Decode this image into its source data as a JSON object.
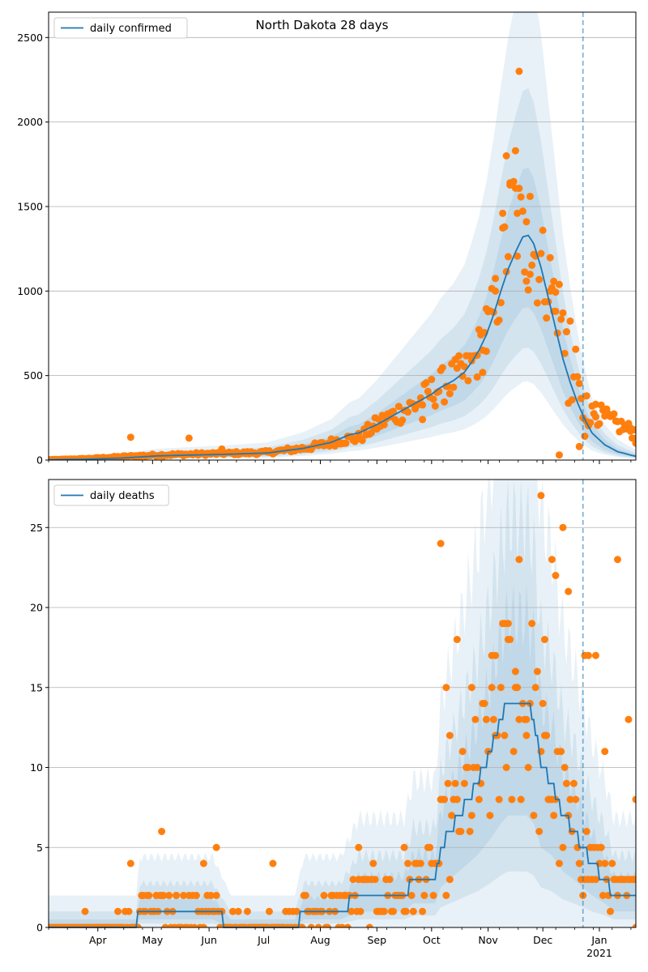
{
  "chart_data": [
    {
      "type": "line",
      "title": "North Dakota 28 days",
      "legend": {
        "label": "daily confirmed",
        "placement": "top-left"
      },
      "ylim": [
        0,
        2650
      ],
      "yticks": [
        0,
        500,
        1000,
        1500,
        2000,
        2500
      ],
      "xlim_day": [
        0,
        322
      ],
      "grid": "horizontal",
      "cutoff_day": 293,
      "colors": {
        "model": "#1f77b4",
        "observed": "#ff7f0e",
        "band": "#1f77b4",
        "cutoff": "#1f77b4"
      },
      "model_knots": [
        [
          0,
          2
        ],
        [
          20,
          5
        ],
        [
          40,
          12
        ],
        [
          60,
          25
        ],
        [
          80,
          30
        ],
        [
          100,
          35
        ],
        [
          120,
          42
        ],
        [
          140,
          70
        ],
        [
          155,
          105
        ],
        [
          165,
          150
        ],
        [
          170,
          160
        ],
        [
          180,
          210
        ],
        [
          190,
          270
        ],
        [
          200,
          330
        ],
        [
          210,
          390
        ],
        [
          215,
          430
        ],
        [
          222,
          470
        ],
        [
          228,
          520
        ],
        [
          232,
          580
        ],
        [
          236,
          650
        ],
        [
          240,
          740
        ],
        [
          244,
          860
        ],
        [
          248,
          1000
        ],
        [
          252,
          1130
        ],
        [
          256,
          1230
        ],
        [
          260,
          1320
        ],
        [
          263,
          1330
        ],
        [
          266,
          1280
        ],
        [
          270,
          1140
        ],
        [
          274,
          960
        ],
        [
          278,
          780
        ],
        [
          282,
          600
        ],
        [
          286,
          460
        ],
        [
          290,
          340
        ],
        [
          294,
          240
        ],
        [
          298,
          160
        ],
        [
          305,
          90
        ],
        [
          312,
          50
        ],
        [
          322,
          22
        ]
      ],
      "observed_knots": [
        [
          0,
          2
        ],
        [
          20,
          8
        ],
        [
          40,
          20
        ],
        [
          60,
          30
        ],
        [
          80,
          35
        ],
        [
          100,
          40
        ],
        [
          120,
          45
        ],
        [
          140,
          70
        ],
        [
          150,
          90
        ],
        [
          160,
          120
        ],
        [
          170,
          130
        ],
        [
          180,
          210
        ],
        [
          190,
          270
        ],
        [
          200,
          320
        ],
        [
          210,
          400
        ],
        [
          220,
          470
        ],
        [
          230,
          520
        ],
        [
          240,
          720
        ],
        [
          245,
          900
        ],
        [
          250,
          1200
        ],
        [
          255,
          1500
        ],
        [
          260,
          1300
        ],
        [
          265,
          1250
        ],
        [
          270,
          1150
        ],
        [
          275,
          1050
        ],
        [
          280,
          900
        ],
        [
          285,
          700
        ],
        [
          290,
          500
        ],
        [
          293,
          250
        ],
        [
          300,
          280
        ],
        [
          310,
          220
        ],
        [
          322,
          160
        ]
      ],
      "observed_highlights": [
        [
          45,
          135
        ],
        [
          77,
          130
        ],
        [
          95,
          65
        ],
        [
          205,
          240
        ],
        [
          235,
          620
        ],
        [
          238,
          650
        ],
        [
          240,
          895
        ],
        [
          245,
          1000
        ],
        [
          249,
          1460
        ],
        [
          251,
          1800
        ],
        [
          253,
          1640
        ],
        [
          256,
          1830
        ],
        [
          257,
          1460
        ],
        [
          258,
          2300
        ],
        [
          262,
          1410
        ],
        [
          264,
          1560
        ],
        [
          275,
          1000
        ],
        [
          277,
          880
        ],
        [
          278,
          880
        ],
        [
          280,
          30
        ],
        [
          291,
          80
        ],
        [
          295,
          380
        ],
        [
          300,
          330
        ],
        [
          319,
          190
        ],
        [
          322,
          100
        ]
      ]
    },
    {
      "type": "line",
      "title": "",
      "legend": {
        "label": "daily deaths",
        "placement": "top-left"
      },
      "ylim": [
        0,
        28
      ],
      "yticks": [
        0,
        5,
        10,
        15,
        20,
        25
      ],
      "xlim_day": [
        0,
        322
      ],
      "grid": "horizontal",
      "cutoff_day": 293,
      "xtick_labels": [
        {
          "day": 27,
          "label": "Apr"
        },
        {
          "day": 57,
          "label": "May"
        },
        {
          "day": 88,
          "label": "Jun"
        },
        {
          "day": 118,
          "label": "Jul"
        },
        {
          "day": 149,
          "label": "Aug"
        },
        {
          "day": 180,
          "label": "Sep"
        },
        {
          "day": 210,
          "label": "Oct"
        },
        {
          "day": 241,
          "label": "Nov"
        },
        {
          "day": 271,
          "label": "Dec"
        },
        {
          "day": 302,
          "label": "Jan"
        }
      ],
      "year_label": {
        "day": 302,
        "label": "2021"
      },
      "model_knots": [
        [
          0,
          0
        ],
        [
          48,
          0
        ],
        [
          50,
          1
        ],
        [
          90,
          1
        ],
        [
          100,
          0
        ],
        [
          135,
          0
        ],
        [
          140,
          1
        ],
        [
          160,
          1
        ],
        [
          170,
          2
        ],
        [
          195,
          2
        ],
        [
          200,
          3
        ],
        [
          212,
          3
        ],
        [
          215,
          5
        ],
        [
          225,
          7
        ],
        [
          235,
          9
        ],
        [
          242,
          11
        ],
        [
          248,
          13
        ],
        [
          252,
          14
        ],
        [
          262,
          14
        ],
        [
          266,
          13
        ],
        [
          270,
          10
        ],
        [
          276,
          9
        ],
        [
          282,
          7
        ],
        [
          288,
          6
        ],
        [
          293,
          5
        ],
        [
          298,
          4
        ],
        [
          305,
          3
        ],
        [
          310,
          2
        ],
        [
          322,
          2
        ]
      ],
      "observed_highlights": [
        [
          5,
          0
        ],
        [
          20,
          1
        ],
        [
          38,
          1
        ],
        [
          45,
          4
        ],
        [
          52,
          2
        ],
        [
          62,
          6
        ],
        [
          70,
          2
        ],
        [
          85,
          4
        ],
        [
          92,
          5
        ],
        [
          123,
          4
        ],
        [
          170,
          5
        ],
        [
          195,
          5
        ],
        [
          215,
          24
        ],
        [
          218,
          15
        ],
        [
          220,
          12
        ],
        [
          224,
          18
        ],
        [
          232,
          15
        ],
        [
          243,
          15
        ],
        [
          245,
          17
        ],
        [
          250,
          12
        ],
        [
          252,
          19
        ],
        [
          256,
          16
        ],
        [
          258,
          23
        ],
        [
          262,
          13
        ],
        [
          270,
          27
        ],
        [
          272,
          18
        ],
        [
          276,
          23
        ],
        [
          278,
          22
        ],
        [
          282,
          25
        ],
        [
          285,
          21
        ],
        [
          294,
          17
        ],
        [
          296,
          17
        ],
        [
          300,
          17
        ],
        [
          305,
          11
        ],
        [
          312,
          23
        ],
        [
          318,
          13
        ],
        [
          322,
          8
        ]
      ]
    }
  ]
}
